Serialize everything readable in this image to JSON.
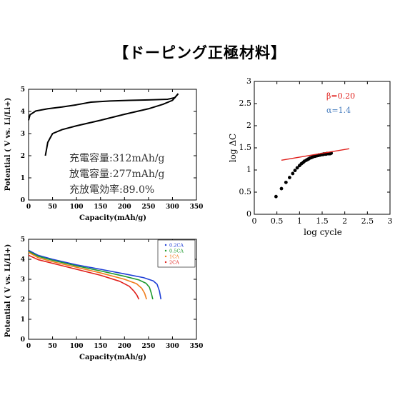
{
  "slide": {
    "title": "【ドーピング正極材料】"
  },
  "chart_data": [
    {
      "id": "charge_discharge",
      "type": "line",
      "xlabel": "Capacity(mAh/g)",
      "ylabel": "Potential ( V vs. Li/Li+)",
      "xlim": [
        0,
        350
      ],
      "ylim": [
        0,
        5
      ],
      "xticks": [
        0,
        50,
        100,
        150,
        200,
        250,
        300,
        350
      ],
      "yticks": [
        0,
        1,
        2,
        3,
        4,
        5
      ],
      "series": [
        {
          "name": "",
          "color": "#000000",
          "x": [
            0,
            3,
            15,
            40,
            70,
            100,
            130,
            170,
            210,
            250,
            290,
            305,
            312
          ],
          "y": [
            3.6,
            3.85,
            4.02,
            4.12,
            4.2,
            4.3,
            4.42,
            4.47,
            4.5,
            4.52,
            4.55,
            4.62,
            4.8
          ]
        },
        {
          "name": "",
          "color": "#000000",
          "x": [
            312,
            300,
            280,
            250,
            200,
            150,
            100,
            70,
            50,
            40,
            35
          ],
          "y": [
            4.8,
            4.5,
            4.32,
            4.12,
            3.87,
            3.6,
            3.35,
            3.18,
            3.0,
            2.6,
            2.0
          ]
        }
      ],
      "annotations": [
        "充電容量:312mAh/g",
        "放電容量:277mAh/g",
        "充放電効率:89.0%"
      ]
    },
    {
      "id": "rate_discharge",
      "type": "line",
      "xlabel": "Capacity(mAh/g)",
      "ylabel": "Potential ( V vs. Li/Li+)",
      "xlim": [
        0,
        350
      ],
      "ylim": [
        0,
        5
      ],
      "xticks": [
        0,
        50,
        100,
        150,
        200,
        250,
        300,
        350
      ],
      "yticks": [
        0,
        1,
        2,
        3,
        4,
        5
      ],
      "legend": "top-right",
      "series": [
        {
          "name": "0.2CA",
          "color": "#1f3fd6",
          "x": [
            0,
            20,
            50,
            100,
            150,
            200,
            240,
            260,
            268,
            273,
            276
          ],
          "y": [
            4.45,
            4.2,
            4.0,
            3.72,
            3.5,
            3.27,
            3.08,
            2.92,
            2.75,
            2.4,
            2.0
          ]
        },
        {
          "name": "0.5CA",
          "color": "#1e9a2e",
          "x": [
            0,
            20,
            50,
            100,
            150,
            200,
            230,
            245,
            252,
            256,
            259
          ],
          "y": [
            4.4,
            4.15,
            3.95,
            3.67,
            3.42,
            3.15,
            2.97,
            2.8,
            2.6,
            2.3,
            2.0
          ]
        },
        {
          "name": "1CA",
          "color": "#f07c1a",
          "x": [
            0,
            20,
            50,
            100,
            150,
            200,
            225,
            236,
            242,
            246
          ],
          "y": [
            4.35,
            4.08,
            3.88,
            3.6,
            3.32,
            3.0,
            2.78,
            2.55,
            2.3,
            2.0
          ]
        },
        {
          "name": "2CA",
          "color": "#e0201c",
          "x": [
            0,
            20,
            50,
            100,
            150,
            190,
            210,
            220,
            226,
            230
          ],
          "y": [
            4.2,
            3.98,
            3.8,
            3.5,
            3.2,
            2.9,
            2.65,
            2.4,
            2.2,
            2.0
          ]
        }
      ]
    },
    {
      "id": "log_cycle",
      "type": "scatter",
      "xlabel": "log cycle",
      "ylabel": "log ΔC",
      "xlim": [
        0,
        3
      ],
      "ylim": [
        0,
        3
      ],
      "xticks": [
        0,
        0.5,
        1,
        1.5,
        2,
        2.5,
        3
      ],
      "yticks": [
        0,
        0.5,
        1,
        1.5,
        2,
        2.5,
        3
      ],
      "points": {
        "color": "#000000",
        "x": [
          0.48,
          0.6,
          0.7,
          0.78,
          0.85,
          0.9,
          0.95,
          1.0,
          1.04,
          1.08,
          1.11,
          1.15,
          1.18,
          1.2,
          1.23,
          1.26,
          1.28,
          1.3,
          1.32,
          1.34,
          1.36,
          1.38,
          1.4,
          1.42,
          1.43,
          1.45,
          1.46,
          1.48,
          1.49,
          1.51,
          1.52,
          1.53,
          1.54,
          1.56,
          1.57,
          1.58,
          1.59,
          1.6,
          1.61,
          1.62,
          1.63,
          1.64,
          1.65,
          1.66,
          1.67,
          1.68,
          1.69,
          1.7
        ],
        "y": [
          0.4,
          0.58,
          0.72,
          0.83,
          0.92,
          0.99,
          1.05,
          1.1,
          1.14,
          1.17,
          1.2,
          1.22,
          1.24,
          1.25,
          1.27,
          1.28,
          1.29,
          1.3,
          1.31,
          1.31,
          1.32,
          1.32,
          1.33,
          1.33,
          1.34,
          1.34,
          1.34,
          1.35,
          1.35,
          1.35,
          1.35,
          1.36,
          1.36,
          1.36,
          1.36,
          1.36,
          1.36,
          1.37,
          1.37,
          1.37,
          1.37,
          1.37,
          1.37,
          1.37,
          1.37,
          1.37,
          1.38,
          1.38
        ]
      },
      "fit": {
        "name": "fit",
        "color": "#e0201c",
        "x": [
          0.6,
          2.1
        ],
        "y": [
          1.22,
          1.48
        ]
      },
      "annotations": [
        {
          "text": "β=0.20",
          "color": "#e0201c"
        },
        {
          "text": "α=1.4",
          "color": "#4a7fc0"
        }
      ]
    }
  ]
}
